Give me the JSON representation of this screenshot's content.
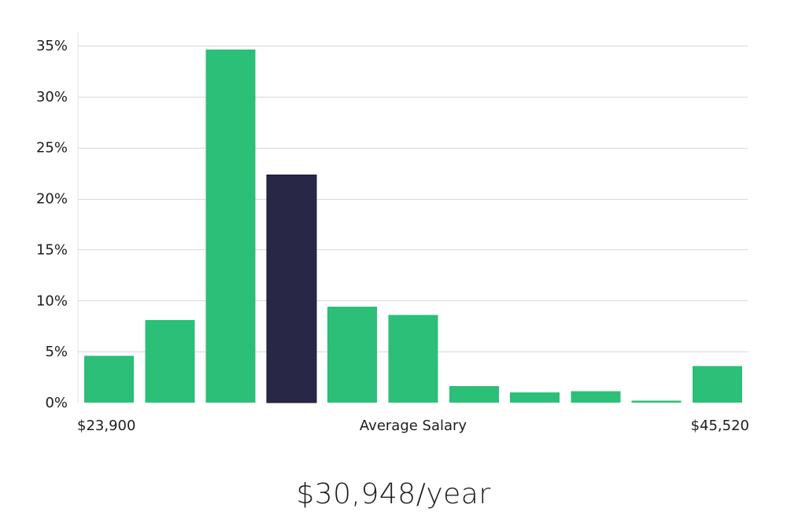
{
  "chart_data": {
    "type": "bar",
    "title": "",
    "xlabel": "Average Salary",
    "ylabel": "",
    "x_min_label": "$23,900",
    "x_max_label": "$45,520",
    "ylim": [
      0,
      35
    ],
    "yticks": [
      0,
      5,
      10,
      15,
      20,
      25,
      30,
      35
    ],
    "ytick_labels": [
      "0%",
      "5%",
      "10%",
      "15%",
      "20%",
      "25%",
      "30%",
      "35%"
    ],
    "values": [
      4.6,
      8.1,
      34.6,
      22.3,
      9.4,
      8.6,
      1.6,
      1.0,
      1.1,
      0.2,
      3.6
    ],
    "highlight_index": 3,
    "bar_color": "#2bbf78",
    "highlight_color": "#282846",
    "grid": true
  },
  "summary": {
    "salary_text": "$30,948/year"
  }
}
